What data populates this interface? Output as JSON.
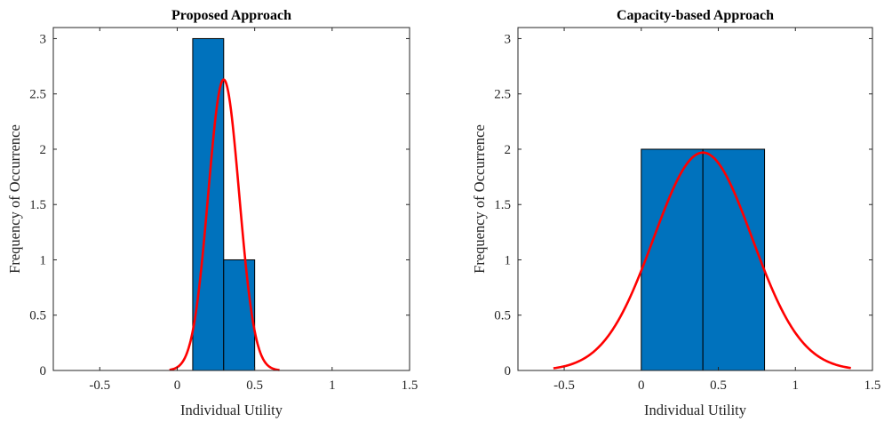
{
  "chart_data": [
    {
      "type": "bar",
      "title": "Proposed Approach",
      "xlabel": "Individual Utility",
      "ylabel": "Frequency of Occurrence",
      "xlim": [
        -0.8,
        1.5
      ],
      "ylim": [
        0,
        3.1
      ],
      "xticks": [
        "-0.5",
        "0",
        "0.5",
        "1",
        "1.5"
      ],
      "yticks": [
        "0",
        "0.5",
        "1",
        "1.5",
        "2",
        "2.5",
        "3"
      ],
      "grid": false,
      "bins": [
        {
          "from": 0.1,
          "to": 0.3,
          "count": 3
        },
        {
          "from": 0.3,
          "to": 0.5,
          "count": 1
        }
      ],
      "fit_curve": {
        "type": "normal",
        "color": "#ff0000",
        "mean": 0.3,
        "sigma": 0.1,
        "peak": 2.63,
        "x_range": [
          -0.05,
          0.66
        ]
      },
      "bar_color": "#0072bd"
    },
    {
      "type": "bar",
      "title": "Capacity-based Approach",
      "xlabel": "Individual Utility",
      "ylabel": "Frequency of Occurrence",
      "xlim": [
        -0.8,
        1.5
      ],
      "ylim": [
        0,
        3.1
      ],
      "xticks": [
        "-0.5",
        "0",
        "0.5",
        "1",
        "1.5"
      ],
      "yticks": [
        "0",
        "0.5",
        "1",
        "1.5",
        "2",
        "2.5",
        "3"
      ],
      "grid": false,
      "bins": [
        {
          "from": 0.0,
          "to": 0.4,
          "count": 2
        },
        {
          "from": 0.4,
          "to": 0.8,
          "count": 2
        }
      ],
      "fit_curve": {
        "type": "normal",
        "color": "#ff0000",
        "mean": 0.4,
        "sigma": 0.32,
        "peak": 1.97,
        "x_range": [
          -0.57,
          1.36
        ]
      },
      "bar_color": "#0072bd"
    }
  ]
}
